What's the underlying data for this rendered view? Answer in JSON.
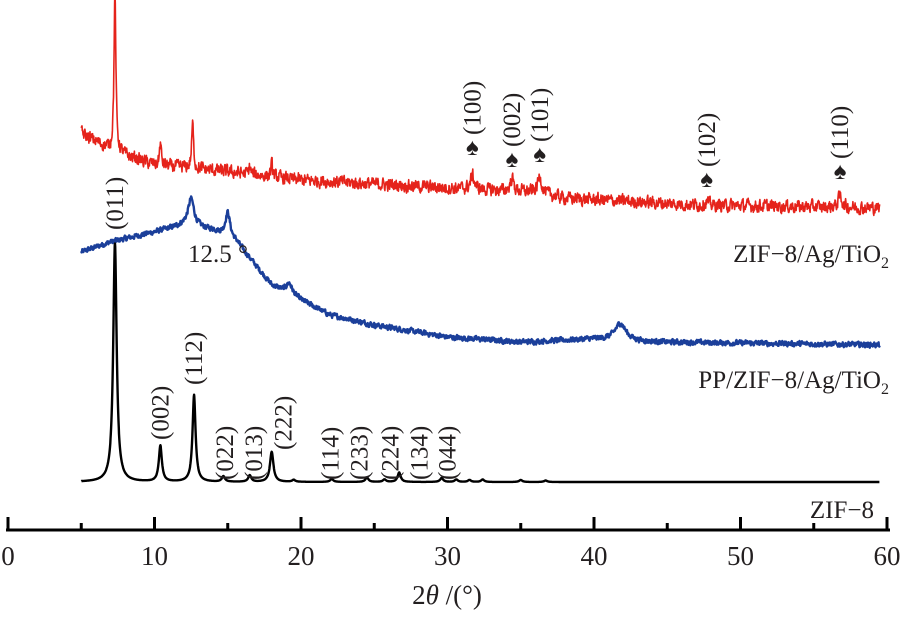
{
  "chart_data": {
    "type": "line",
    "title": "",
    "xlabel": {
      "prefix": "2",
      "symbol": "θ",
      "suffix": " /(°)"
    },
    "ylabel": "",
    "xlim": [
      0,
      60
    ],
    "ylim": [
      -1.6,
      104.4
    ],
    "grid": false,
    "x_ticks": [
      0,
      10,
      20,
      30,
      40,
      50,
      60
    ],
    "x_minor_ticks": [
      5,
      15,
      25,
      35,
      45,
      55
    ],
    "x_range_measured": [
      5,
      59.5
    ],
    "series": [
      {
        "name": "ZIF-8",
        "label": "ZIF−8",
        "label_sub": "",
        "color": "#000000",
        "noise": 0.0,
        "baseline": [
          [
            5,
            8
          ],
          [
            60,
            8
          ]
        ],
        "peaks": [
          [
            7.3,
            48,
            0.28
          ],
          [
            10.4,
            7.2,
            0.25
          ],
          [
            12.7,
            17.4,
            0.25
          ],
          [
            14.7,
            1.1,
            0.25
          ],
          [
            16.5,
            1.3,
            0.25
          ],
          [
            18.0,
            6.0,
            0.28
          ],
          [
            19.5,
            0.4,
            0.25
          ],
          [
            22.1,
            0.6,
            0.25
          ],
          [
            24.5,
            0.9,
            0.25
          ],
          [
            25.7,
            0.5,
            0.25
          ],
          [
            26.7,
            1.9,
            0.25
          ],
          [
            29.6,
            0.8,
            0.25
          ],
          [
            30.6,
            0.5,
            0.25
          ],
          [
            31.5,
            0.4,
            0.25
          ],
          [
            32.4,
            0.5,
            0.25
          ],
          [
            35.0,
            0.4,
            0.25
          ],
          [
            36.7,
            0.3,
            0.25
          ]
        ]
      },
      {
        "name": "PP/ZIF-8/Ag/TiO2",
        "label": "PP/ZIF−8/Ag/TiO",
        "label_sub": "2",
        "color": "#1b3f9a",
        "noise": 0.45,
        "baseline": [
          [
            5,
            54
          ],
          [
            7,
            56
          ],
          [
            10,
            58
          ],
          [
            12,
            59.4
          ],
          [
            14,
            58.4
          ],
          [
            15.6,
            56
          ],
          [
            18,
            47.4
          ],
          [
            22,
            41.4
          ],
          [
            25,
            39.4
          ],
          [
            30,
            37
          ],
          [
            35,
            36
          ],
          [
            40,
            36.6
          ],
          [
            44,
            36
          ],
          [
            50,
            35.8
          ],
          [
            60,
            35.4
          ]
        ],
        "peaks": [
          [
            12.5,
            5.5,
            0.5
          ],
          [
            15.0,
            5.0,
            0.4
          ],
          [
            19.2,
            2.2,
            0.5
          ],
          [
            41.8,
            3.4,
            0.9
          ]
        ]
      },
      {
        "name": "ZIF-8/Ag/TiO2",
        "label": "ZIF−8/Ag/TiO",
        "label_sub": "2",
        "color": "#e5231b",
        "noise": 1.1,
        "baseline": [
          [
            5,
            77.8
          ],
          [
            7,
            74.4
          ],
          [
            10,
            71.4
          ],
          [
            14,
            70.4
          ],
          [
            20,
            68.4
          ],
          [
            30,
            66.8
          ],
          [
            36,
            66
          ],
          [
            38,
            64.8
          ],
          [
            47,
            63.4
          ],
          [
            60,
            62.8
          ]
        ],
        "peaks": [
          [
            7.3,
            32,
            0.15
          ],
          [
            10.4,
            4.5,
            0.15
          ],
          [
            12.6,
            9.0,
            0.15
          ],
          [
            16.5,
            1.5,
            0.15
          ],
          [
            18.0,
            2.5,
            0.15
          ],
          [
            31.7,
            2.8,
            0.3
          ],
          [
            34.4,
            2.6,
            0.25
          ],
          [
            36.3,
            3.4,
            0.3
          ],
          [
            47.7,
            0.7,
            0.3
          ],
          [
            56.8,
            2.4,
            0.3
          ]
        ]
      }
    ],
    "annotations": [
      {
        "text": "(011)",
        "x": 7.3,
        "y": 58.4,
        "series": "ZIF-8"
      },
      {
        "text": "(002)",
        "x": 10.4,
        "y": 16.4,
        "series": "ZIF-8"
      },
      {
        "text": "(112)",
        "x": 12.7,
        "y": 27.4,
        "series": "ZIF-8"
      },
      {
        "text": "(022)",
        "x": 14.8,
        "y": 8.4,
        "series": "ZIF-8"
      },
      {
        "text": "(013)",
        "x": 16.8,
        "y": 8.4,
        "series": "ZIF-8"
      },
      {
        "text": "(222)",
        "x": 18.8,
        "y": 14.4,
        "series": "ZIF-8"
      },
      {
        "text": "(114)",
        "x": 22.0,
        "y": 8.4,
        "series": "ZIF-8"
      },
      {
        "text": "(233)",
        "x": 24.0,
        "y": 8.4,
        "series": "ZIF-8"
      },
      {
        "text": "(224)",
        "x": 26.1,
        "y": 8.4,
        "series": "ZIF-8"
      },
      {
        "text": "(134)",
        "x": 28.1,
        "y": 8.4,
        "series": "ZIF-8"
      },
      {
        "text": "(044)",
        "x": 30.0,
        "y": 8.4,
        "series": "ZIF-8"
      },
      {
        "text": "(100)",
        "x": 31.7,
        "y": 73.4,
        "series": "ZIF-8/Ag/TiO2",
        "marker": "♠"
      },
      {
        "text": "(002)",
        "x": 34.4,
        "y": 71.0,
        "series": "ZIF-8/Ag/TiO2",
        "marker": "♠"
      },
      {
        "text": "(101)",
        "x": 36.3,
        "y": 72.0,
        "series": "ZIF-8/Ag/TiO2",
        "marker": "♠"
      },
      {
        "text": "(102)",
        "x": 47.7,
        "y": 67.0,
        "series": "ZIF-8/Ag/TiO2",
        "marker": "♠"
      },
      {
        "text": "(110)",
        "x": 56.8,
        "y": 68.6,
        "series": "ZIF-8/Ag/TiO2",
        "marker": "♠"
      }
    ],
    "angle_annotation": {
      "text": "12.5 °",
      "x": 12.5
    }
  }
}
